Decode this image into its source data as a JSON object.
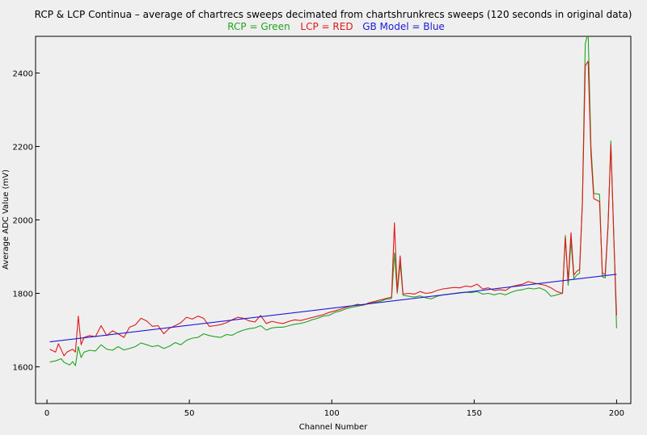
{
  "chart_data": {
    "type": "line",
    "title": "RCP & LCP Continua – average of chartrecs sweeps decimated from chartshrunkrecs sweeps  (120 seconds in original data)",
    "legend": [
      {
        "label": "RCP = Green",
        "color": "#1fa51f"
      },
      {
        "label": "LCP = RED",
        "color": "#e01818"
      },
      {
        "label": "GB Model = Blue",
        "color": "#1a1ad8"
      }
    ],
    "legend_placement": "top",
    "xlabel": "Channel Number",
    "ylabel": "Average ADC Value  (mV)",
    "xlim": [
      -4,
      205
    ],
    "ylim": [
      1500,
      2500
    ],
    "xticks": [
      "0",
      "50",
      "100",
      "150",
      "200"
    ],
    "yticks": [
      "1600",
      "1800",
      "2000",
      "2200",
      "2400"
    ],
    "grid": false,
    "series": [
      {
        "label_ref": "RCP = Green",
        "color": "#1fa51f",
        "points": [
          [
            1,
            1613
          ],
          [
            3,
            1616
          ],
          [
            5,
            1622
          ],
          [
            6,
            1612
          ],
          [
            8,
            1605
          ],
          [
            9,
            1614
          ],
          [
            10,
            1603
          ],
          [
            11,
            1655
          ],
          [
            12,
            1625
          ],
          [
            13,
            1640
          ],
          [
            15,
            1645
          ],
          [
            17,
            1643
          ],
          [
            19,
            1660
          ],
          [
            21,
            1648
          ],
          [
            23,
            1645
          ],
          [
            25,
            1655
          ],
          [
            27,
            1646
          ],
          [
            29,
            1650
          ],
          [
            31,
            1655
          ],
          [
            33,
            1665
          ],
          [
            35,
            1660
          ],
          [
            37,
            1655
          ],
          [
            39,
            1658
          ],
          [
            41,
            1650
          ],
          [
            43,
            1656
          ],
          [
            45,
            1666
          ],
          [
            47,
            1660
          ],
          [
            49,
            1672
          ],
          [
            51,
            1678
          ],
          [
            53,
            1680
          ],
          [
            55,
            1690
          ],
          [
            57,
            1685
          ],
          [
            59,
            1682
          ],
          [
            61,
            1680
          ],
          [
            63,
            1688
          ],
          [
            65,
            1686
          ],
          [
            67,
            1694
          ],
          [
            69,
            1700
          ],
          [
            71,
            1704
          ],
          [
            73,
            1706
          ],
          [
            75,
            1712
          ],
          [
            77,
            1700
          ],
          [
            79,
            1706
          ],
          [
            81,
            1708
          ],
          [
            83,
            1708
          ],
          [
            85,
            1712
          ],
          [
            87,
            1716
          ],
          [
            89,
            1718
          ],
          [
            91,
            1722
          ],
          [
            93,
            1728
          ],
          [
            95,
            1732
          ],
          [
            97,
            1738
          ],
          [
            99,
            1740
          ],
          [
            101,
            1748
          ],
          [
            103,
            1752
          ],
          [
            105,
            1758
          ],
          [
            107,
            1762
          ],
          [
            109,
            1765
          ],
          [
            111,
            1768
          ],
          [
            113,
            1772
          ],
          [
            115,
            1776
          ],
          [
            117,
            1778
          ],
          [
            119,
            1784
          ],
          [
            121,
            1786
          ],
          [
            122,
            1910
          ],
          [
            123,
            1800
          ],
          [
            124,
            1882
          ],
          [
            125,
            1795
          ],
          [
            127,
            1792
          ],
          [
            129,
            1790
          ],
          [
            131,
            1793
          ],
          [
            133,
            1788
          ],
          [
            135,
            1785
          ],
          [
            137,
            1792
          ],
          [
            139,
            1796
          ],
          [
            141,
            1798
          ],
          [
            143,
            1800
          ],
          [
            145,
            1802
          ],
          [
            147,
            1803
          ],
          [
            149,
            1802
          ],
          [
            151,
            1805
          ],
          [
            153,
            1798
          ],
          [
            155,
            1800
          ],
          [
            157,
            1796
          ],
          [
            159,
            1800
          ],
          [
            161,
            1796
          ],
          [
            163,
            1803
          ],
          [
            165,
            1808
          ],
          [
            167,
            1810
          ],
          [
            169,
            1814
          ],
          [
            171,
            1812
          ],
          [
            173,
            1815
          ],
          [
            175,
            1808
          ],
          [
            177,
            1792
          ],
          [
            179,
            1796
          ],
          [
            181,
            1800
          ],
          [
            182,
            1958
          ],
          [
            183,
            1822
          ],
          [
            184,
            1945
          ],
          [
            185,
            1840
          ],
          [
            186,
            1850
          ],
          [
            187,
            1855
          ],
          [
            188,
            2050
          ],
          [
            189,
            2480
          ],
          [
            190,
            2510
          ],
          [
            191,
            2200
          ],
          [
            192,
            2072
          ],
          [
            194,
            2070
          ],
          [
            195,
            1845
          ],
          [
            196,
            1842
          ],
          [
            197,
            1980
          ],
          [
            198,
            2215
          ],
          [
            199,
            1960
          ],
          [
            200,
            1705
          ]
        ]
      },
      {
        "label_ref": "LCP = RED",
        "color": "#e01818",
        "points": [
          [
            1,
            1648
          ],
          [
            3,
            1640
          ],
          [
            4,
            1663
          ],
          [
            6,
            1630
          ],
          [
            7,
            1640
          ],
          [
            9,
            1648
          ],
          [
            10,
            1640
          ],
          [
            11,
            1738
          ],
          [
            12,
            1660
          ],
          [
            13,
            1680
          ],
          [
            15,
            1685
          ],
          [
            17,
            1682
          ],
          [
            19,
            1712
          ],
          [
            21,
            1685
          ],
          [
            23,
            1698
          ],
          [
            25,
            1690
          ],
          [
            27,
            1680
          ],
          [
            29,
            1708
          ],
          [
            31,
            1714
          ],
          [
            33,
            1732
          ],
          [
            35,
            1725
          ],
          [
            37,
            1710
          ],
          [
            39,
            1712
          ],
          [
            41,
            1690
          ],
          [
            43,
            1705
          ],
          [
            45,
            1712
          ],
          [
            47,
            1720
          ],
          [
            49,
            1735
          ],
          [
            51,
            1730
          ],
          [
            53,
            1738
          ],
          [
            55,
            1732
          ],
          [
            57,
            1710
          ],
          [
            59,
            1712
          ],
          [
            61,
            1715
          ],
          [
            63,
            1720
          ],
          [
            65,
            1728
          ],
          [
            67,
            1735
          ],
          [
            69,
            1732
          ],
          [
            71,
            1725
          ],
          [
            73,
            1722
          ],
          [
            75,
            1740
          ],
          [
            77,
            1718
          ],
          [
            79,
            1724
          ],
          [
            81,
            1720
          ],
          [
            83,
            1718
          ],
          [
            85,
            1724
          ],
          [
            87,
            1728
          ],
          [
            89,
            1726
          ],
          [
            91,
            1730
          ],
          [
            93,
            1734
          ],
          [
            95,
            1738
          ],
          [
            97,
            1742
          ],
          [
            99,
            1748
          ],
          [
            101,
            1752
          ],
          [
            103,
            1757
          ],
          [
            105,
            1762
          ],
          [
            107,
            1766
          ],
          [
            109,
            1770
          ],
          [
            111,
            1768
          ],
          [
            113,
            1774
          ],
          [
            115,
            1778
          ],
          [
            117,
            1782
          ],
          [
            119,
            1786
          ],
          [
            121,
            1790
          ],
          [
            122,
            1992
          ],
          [
            123,
            1805
          ],
          [
            124,
            1902
          ],
          [
            125,
            1798
          ],
          [
            127,
            1800
          ],
          [
            129,
            1798
          ],
          [
            131,
            1805
          ],
          [
            133,
            1800
          ],
          [
            135,
            1802
          ],
          [
            137,
            1808
          ],
          [
            139,
            1812
          ],
          [
            141,
            1814
          ],
          [
            143,
            1816
          ],
          [
            145,
            1815
          ],
          [
            147,
            1820
          ],
          [
            149,
            1818
          ],
          [
            151,
            1825
          ],
          [
            153,
            1812
          ],
          [
            155,
            1815
          ],
          [
            157,
            1808
          ],
          [
            159,
            1810
          ],
          [
            161,
            1808
          ],
          [
            163,
            1818
          ],
          [
            165,
            1822
          ],
          [
            167,
            1825
          ],
          [
            169,
            1832
          ],
          [
            171,
            1828
          ],
          [
            173,
            1825
          ],
          [
            175,
            1822
          ],
          [
            177,
            1815
          ],
          [
            179,
            1805
          ],
          [
            181,
            1800
          ],
          [
            182,
            1952
          ],
          [
            183,
            1832
          ],
          [
            184,
            1965
          ],
          [
            185,
            1850
          ],
          [
            186,
            1860
          ],
          [
            187,
            1865
          ],
          [
            188,
            2045
          ],
          [
            189,
            2420
          ],
          [
            190,
            2432
          ],
          [
            191,
            2180
          ],
          [
            192,
            2058
          ],
          [
            194,
            2050
          ],
          [
            195,
            1855
          ],
          [
            196,
            1852
          ],
          [
            197,
            1985
          ],
          [
            198,
            2205
          ],
          [
            199,
            1955
          ],
          [
            200,
            1740
          ]
        ]
      },
      {
        "label_ref": "GB Model = Blue",
        "color": "#1a1ad8",
        "points": [
          [
            1,
            1668
          ],
          [
            200,
            1852
          ]
        ]
      }
    ]
  }
}
